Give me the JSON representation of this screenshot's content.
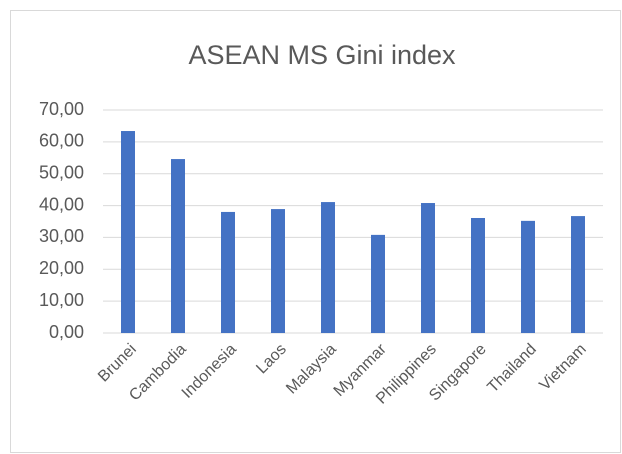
{
  "chart_data": {
    "type": "bar",
    "title": "ASEAN MS Gini index",
    "categories": [
      "Brunei",
      "Cambodia",
      "Indonesia",
      "Laos",
      "Malaysia",
      "Myanmar",
      "Philippines",
      "Singapore",
      "Thailand",
      "Vietnam"
    ],
    "values": [
      63.4,
      54.6,
      38.0,
      38.9,
      41.1,
      30.8,
      40.8,
      36.1,
      35.2,
      36.7
    ],
    "color": "#4472c4",
    "ylim": [
      0,
      70
    ],
    "yticks": [
      {
        "value": 0,
        "label": "0,00"
      },
      {
        "value": 10,
        "label": "10,00"
      },
      {
        "value": 20,
        "label": "20,00"
      },
      {
        "value": 30,
        "label": "30,00"
      },
      {
        "value": 40,
        "label": "40,00"
      },
      {
        "value": 50,
        "label": "50,00"
      },
      {
        "value": 60,
        "label": "60,00"
      },
      {
        "value": 70,
        "label": "70,00"
      }
    ],
    "grid": true
  }
}
